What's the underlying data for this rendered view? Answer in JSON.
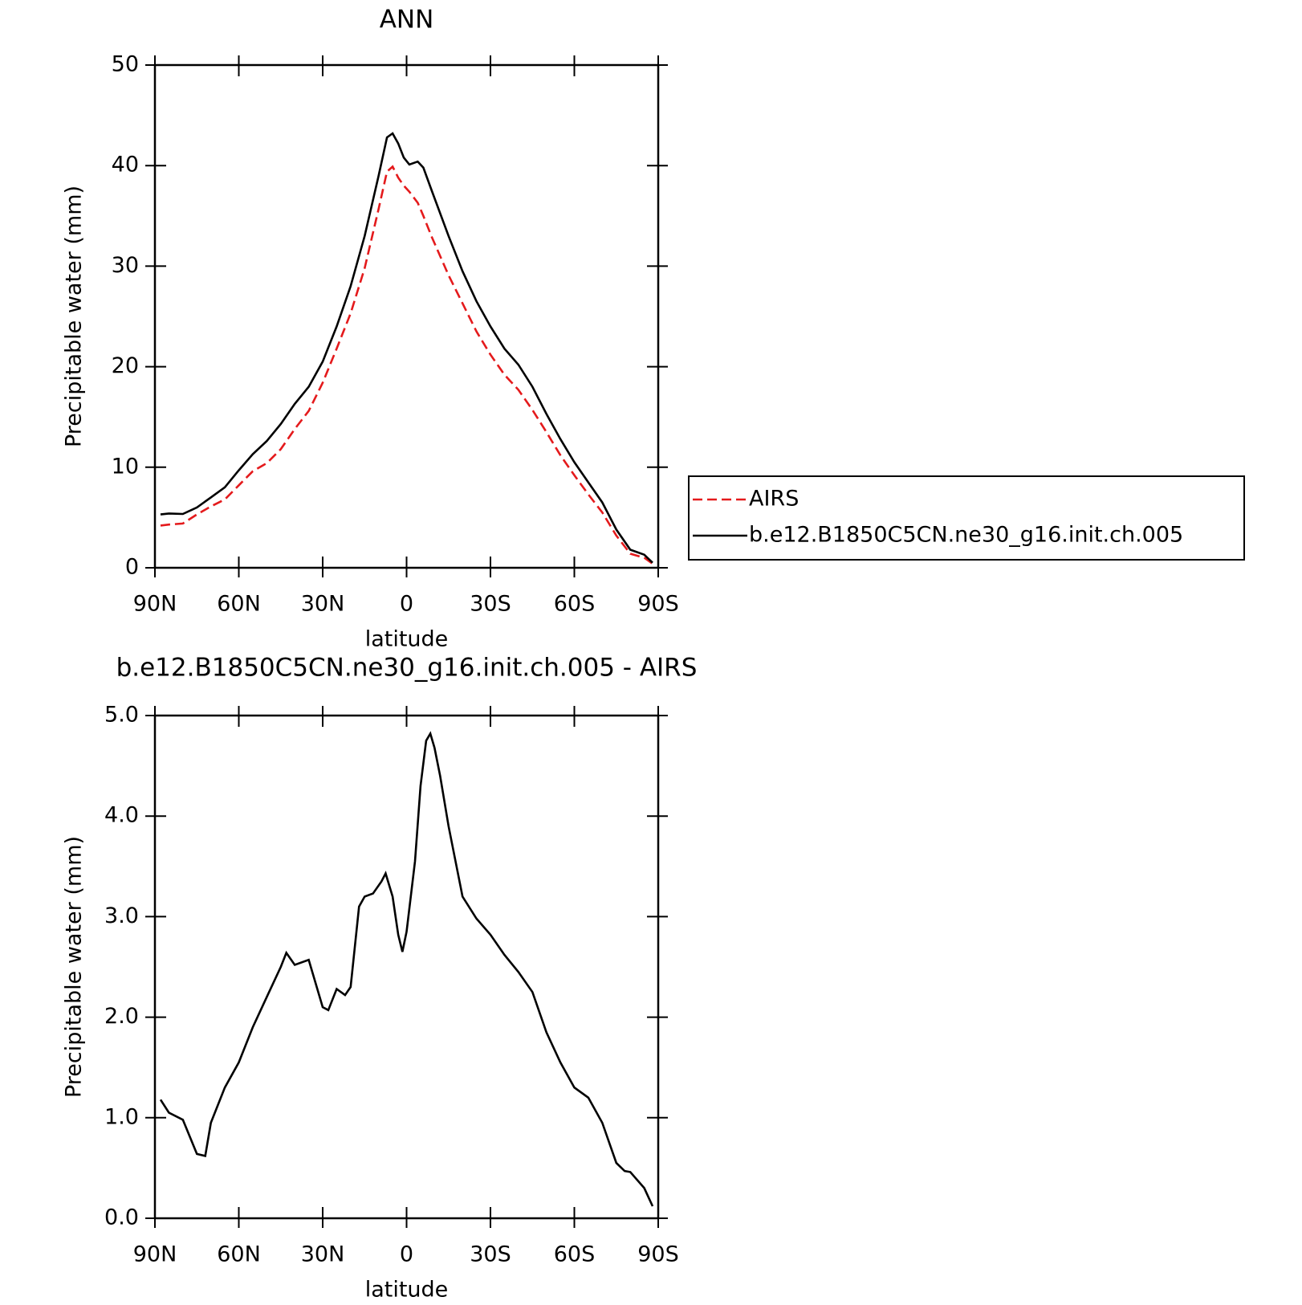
{
  "chart_data": [
    {
      "type": "line",
      "title": "ANN",
      "xlabel": "latitude",
      "ylabel": "Precipitable water (mm)",
      "x": [
        88,
        85,
        80,
        75,
        70,
        65,
        60,
        55,
        50,
        45,
        40,
        35,
        30,
        25,
        20,
        15,
        10,
        7,
        5,
        3,
        1,
        -1,
        -4,
        -6,
        -9,
        -15,
        -20,
        -25,
        -30,
        -35,
        -40,
        -45,
        -50,
        -55,
        -60,
        -65,
        -70,
        -75,
        -80,
        -85,
        -88
      ],
      "series": [
        {
          "name": "AIRS",
          "color": "#e41a1c",
          "style": "dashed",
          "values": [
            4.2,
            4.3,
            4.4,
            5.3,
            6.1,
            6.8,
            8.2,
            9.6,
            10.4,
            11.8,
            13.8,
            15.6,
            18.4,
            21.8,
            25.3,
            29.8,
            35.7,
            39.4,
            39.9,
            38.8,
            38.0,
            37.4,
            36.3,
            35.0,
            32.9,
            29.1,
            26.3,
            23.5,
            21.2,
            19.2,
            17.7,
            15.7,
            13.5,
            11.2,
            9.2,
            7.3,
            5.5,
            3.2,
            1.4,
            1.0,
            0.4
          ]
        },
        {
          "name": "b.e12.B1850C5CN.ne30_g16.init.ch.005",
          "color": "#000000",
          "style": "solid",
          "values": [
            5.3,
            5.4,
            5.35,
            6.0,
            7.0,
            8.0,
            9.7,
            11.3,
            12.6,
            14.3,
            16.3,
            18.0,
            20.5,
            24.0,
            28.0,
            33.0,
            39.0,
            42.8,
            43.2,
            42.2,
            40.8,
            40.1,
            40.4,
            39.8,
            37.5,
            33.0,
            29.5,
            26.5,
            24.0,
            21.8,
            20.2,
            18.0,
            15.3,
            12.8,
            10.5,
            8.5,
            6.5,
            3.8,
            1.8,
            1.3,
            0.5
          ]
        }
      ],
      "xlim": [
        90,
        -90
      ],
      "xticks": [
        {
          "value": 90,
          "label": "90N"
        },
        {
          "value": 60,
          "label": "60N"
        },
        {
          "value": 30,
          "label": "30N"
        },
        0,
        {
          "value": -30,
          "label": "30S"
        },
        {
          "value": -60,
          "label": "60S"
        },
        {
          "value": -90,
          "label": "90S"
        }
      ],
      "ylim": [
        0,
        50
      ],
      "yticks": [
        0,
        10,
        20,
        30,
        40,
        50
      ],
      "legend": "right"
    },
    {
      "type": "line",
      "title": "b.e12.B1850C5CN.ne30_g16.init.ch.005 - AIRS",
      "xlabel": "latitude",
      "ylabel": "Precipitable water (mm)",
      "x": [
        88,
        85,
        80,
        75,
        72,
        70,
        65,
        60,
        55,
        50,
        45,
        43,
        40,
        35,
        30,
        28,
        25,
        22,
        20,
        17,
        15,
        12,
        9,
        7.5,
        5,
        3,
        1.5,
        0,
        -3,
        -5,
        -7,
        -8.5,
        -10,
        -12,
        -15,
        -20,
        -25,
        -30,
        -35,
        -40,
        -45,
        -50,
        -55,
        -60,
        -65,
        -70,
        -75,
        -78,
        -80,
        -85,
        -88
      ],
      "series": [
        {
          "color": "#000000",
          "style": "solid",
          "values": [
            1.18,
            1.05,
            0.98,
            0.64,
            0.62,
            0.95,
            1.3,
            1.55,
            1.9,
            2.2,
            2.5,
            2.64,
            2.52,
            2.57,
            2.1,
            2.07,
            2.28,
            2.22,
            2.3,
            3.1,
            3.2,
            3.23,
            3.35,
            3.43,
            3.2,
            2.82,
            2.65,
            2.85,
            3.55,
            4.3,
            4.75,
            4.82,
            4.68,
            4.4,
            3.9,
            3.2,
            2.98,
            2.82,
            2.62,
            2.45,
            2.25,
            1.85,
            1.55,
            1.3,
            1.2,
            0.95,
            0.55,
            0.47,
            0.46,
            0.3,
            0.12
          ]
        }
      ],
      "xlim": [
        90,
        -90
      ],
      "xticks": [
        {
          "value": 90,
          "label": "90N"
        },
        {
          "value": 60,
          "label": "60N"
        },
        {
          "value": 30,
          "label": "30N"
        },
        0,
        {
          "value": -30,
          "label": "30S"
        },
        {
          "value": -60,
          "label": "60S"
        },
        {
          "value": -90,
          "label": "90S"
        }
      ],
      "ylim": [
        0,
        5
      ],
      "yticks": [
        {
          "value": 0,
          "label": "0.0"
        },
        {
          "value": 1,
          "label": "1.0"
        },
        {
          "value": 2,
          "label": "2.0"
        },
        {
          "value": 3,
          "label": "3.0"
        },
        {
          "value": 4,
          "label": "4.0"
        },
        {
          "value": 5,
          "label": "5.0"
        }
      ]
    }
  ]
}
